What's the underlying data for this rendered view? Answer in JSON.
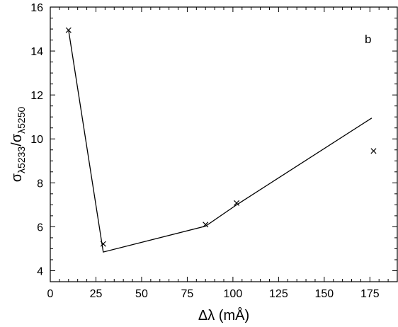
{
  "chart_data": {
    "type": "scatter",
    "panel_label": "b",
    "xlabel": "Δλ (mÅ)",
    "ylabel": {
      "main": "σ",
      "num_sub": "λ5233",
      "sep": "/",
      "den_main": "σ",
      "den_sub": "λ5250"
    },
    "xlim": [
      0,
      190
    ],
    "ylim": [
      3.5,
      16
    ],
    "x_ticks": [
      0,
      25,
      50,
      75,
      100,
      125,
      150,
      175
    ],
    "y_ticks": [
      4,
      6,
      8,
      10,
      12,
      14,
      16
    ],
    "x_minor_step": 5,
    "y_minor_step": 0.5,
    "grid": false,
    "series": [
      {
        "type": "scatter",
        "marker": "x",
        "points": [
          {
            "x": 10,
            "y": 14.95
          },
          {
            "x": 29,
            "y": 5.22
          },
          {
            "x": 85,
            "y": 6.1
          },
          {
            "x": 102,
            "y": 7.08
          },
          {
            "x": 177,
            "y": 9.45
          }
        ]
      },
      {
        "type": "line",
        "points": [
          {
            "x": 10,
            "y": 14.95
          },
          {
            "x": 29,
            "y": 4.85
          },
          {
            "x": 85,
            "y": 6.03
          },
          {
            "x": 102,
            "y": 7.0
          },
          {
            "x": 176,
            "y": 10.95
          }
        ]
      }
    ]
  }
}
